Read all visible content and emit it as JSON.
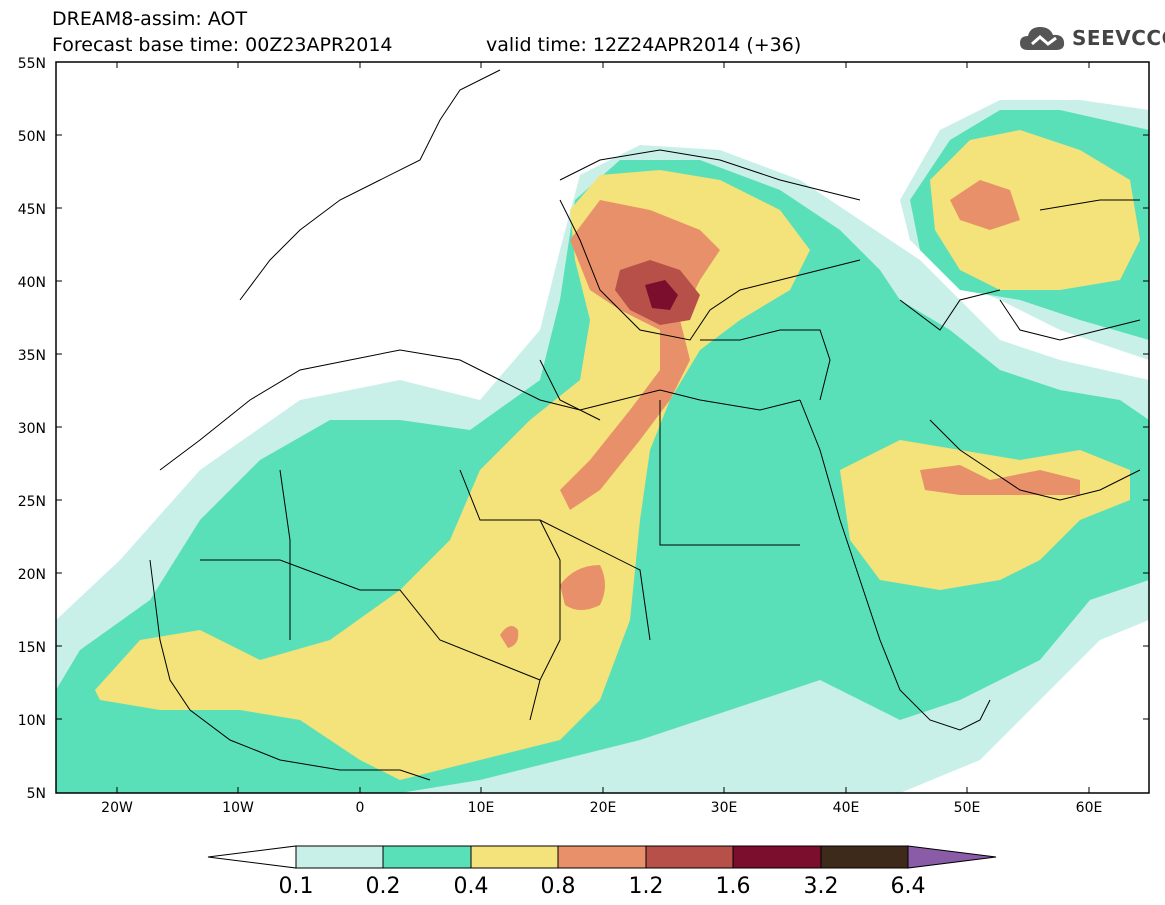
{
  "header": {
    "title_line1": "DREAM8-assim: AOT",
    "title_line2": "Forecast base time: 00Z23APR2014",
    "valid_time": "valid time: 12Z24APR2014 (+36)",
    "logo_text": "SEEVCCC"
  },
  "map": {
    "lat_labels": [
      "55N",
      "50N",
      "45N",
      "40N",
      "35N",
      "30N",
      "25N",
      "20N",
      "15N",
      "10N",
      "5N"
    ],
    "lon_labels": [
      "20W",
      "10W",
      "0",
      "10E",
      "20E",
      "30E",
      "40E",
      "50E",
      "60E"
    ],
    "lon_range": [
      -25,
      65
    ],
    "lat_range": [
      5,
      55
    ]
  },
  "colorbar": {
    "labels": [
      "0.1",
      "0.2",
      "0.4",
      "0.8",
      "1.2",
      "1.6",
      "3.2",
      "6.4"
    ],
    "colors": [
      "#ffffff",
      "#c8f0e8",
      "#5ae0b8",
      "#f4e27a",
      "#e8906a",
      "#b8504a",
      "#7a0e2c",
      "#3e2a1a",
      "#8a5ca8"
    ]
  },
  "colors": {
    "level_0_1": "#c8f0e8",
    "level_0_2": "#5ae0b8",
    "level_0_4": "#f4e27a",
    "level_0_8": "#e8906a",
    "level_1_2": "#b8504a",
    "level_1_6": "#7a0e2c"
  }
}
